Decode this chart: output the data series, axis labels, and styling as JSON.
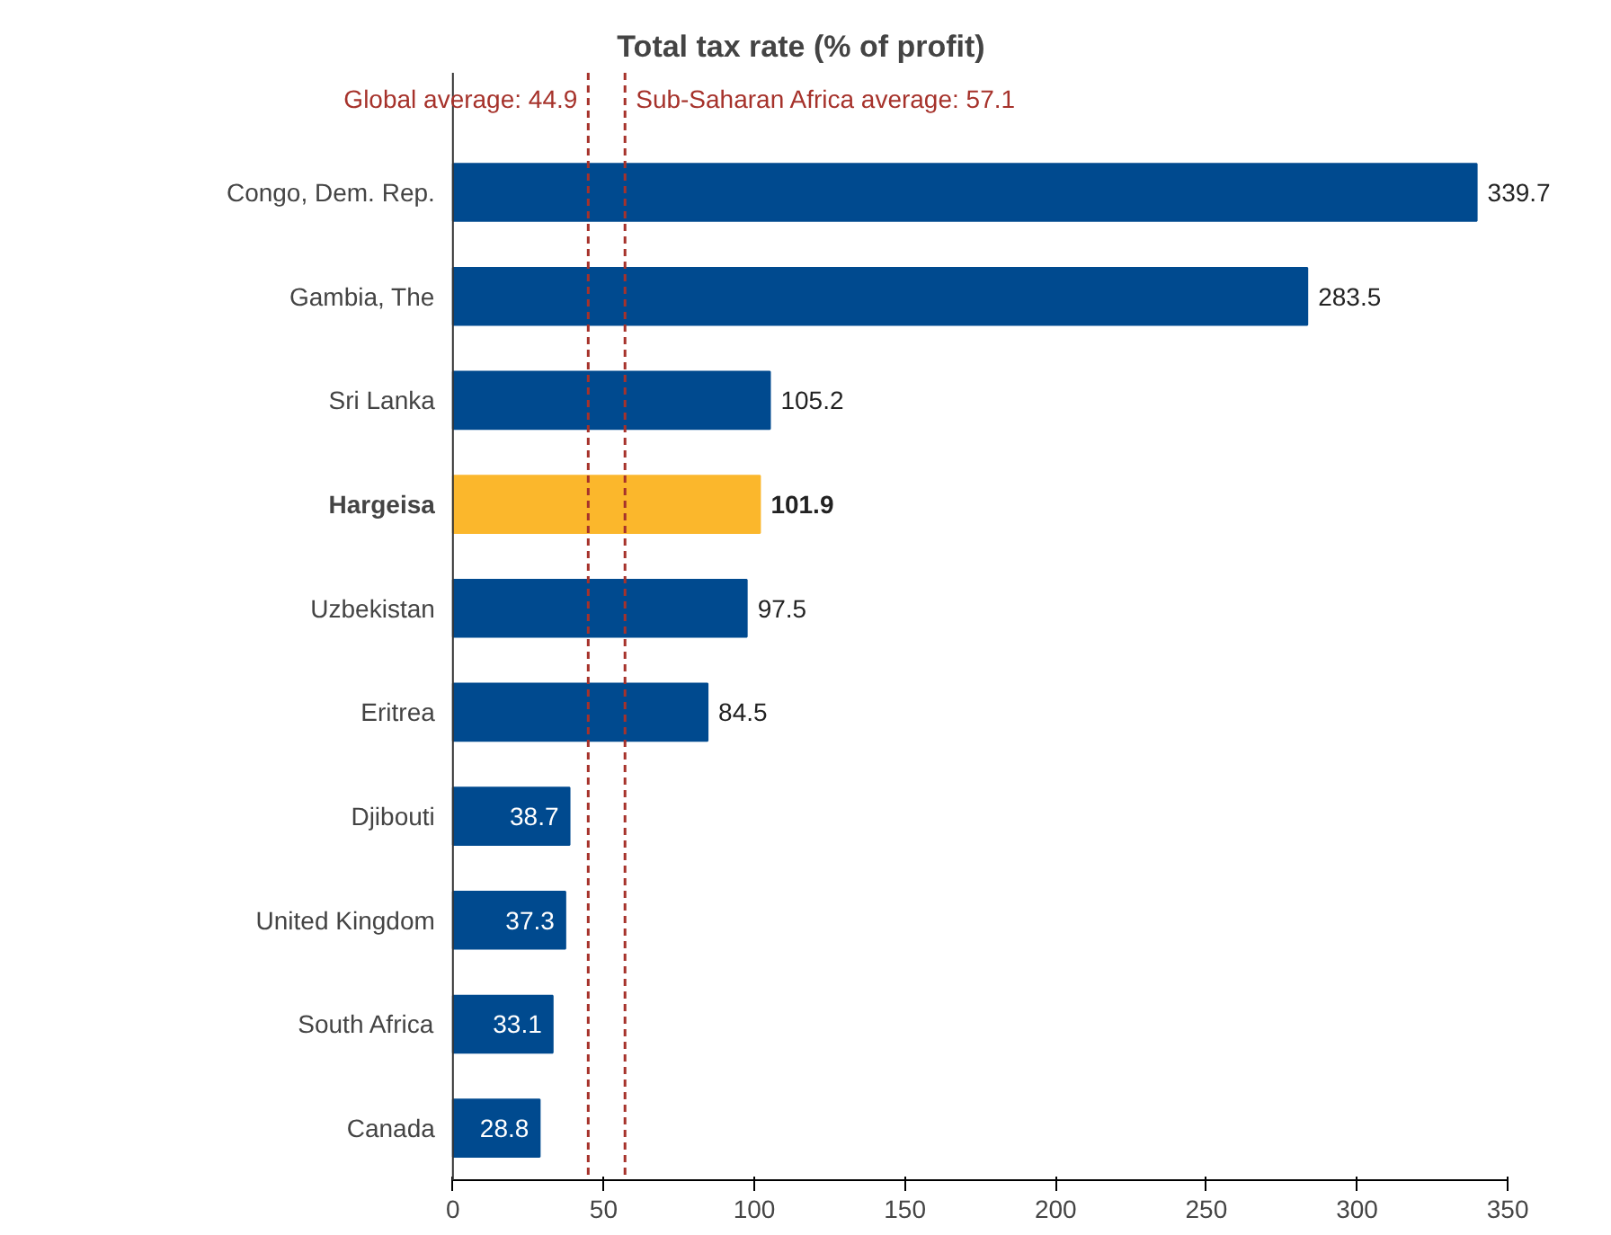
{
  "chart_data": {
    "type": "bar",
    "orientation": "horizontal",
    "title": "Total tax rate (% of profit)",
    "categories": [
      "Congo, Dem. Rep.",
      "Gambia, The",
      "Sri Lanka",
      "Hargeisa",
      "Uzbekistan",
      "Eritrea",
      "Djibouti",
      "United Kingdom",
      "South Africa",
      "Canada"
    ],
    "values": [
      339.7,
      283.5,
      105.2,
      101.9,
      97.5,
      84.5,
      38.7,
      37.3,
      33.1,
      28.8
    ],
    "colors": [
      "#004a8f",
      "#004a8f",
      "#004a8f",
      "#fbb72c",
      "#004a8f",
      "#004a8f",
      "#004a8f",
      "#004a8f",
      "#004a8f",
      "#004a8f"
    ],
    "xlim": [
      0,
      350
    ],
    "xticks": [
      0,
      50,
      100,
      150,
      200,
      250,
      300,
      350
    ],
    "ref_lines": [
      {
        "axis": "x",
        "value": 44.9,
        "label": "Global average: 44.9",
        "color": "#a6322b",
        "line_style": "dashed"
      },
      {
        "axis": "x",
        "value": 57.1,
        "label": "Sub-Saharan Africa average: 57.1",
        "color": "#a6322b",
        "line_style": "dashed"
      }
    ],
    "data_labels": true,
    "grid": false
  }
}
